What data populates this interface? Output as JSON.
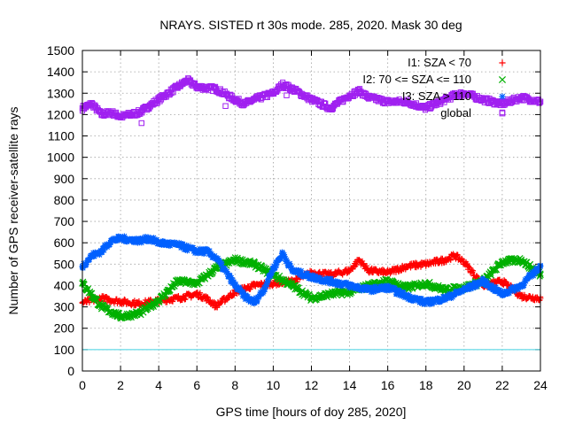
{
  "chart_data": {
    "type": "scatter",
    "title": "NRAYS. SISTED rt 30s mode. 285, 2020. Mask 30 deg",
    "xlabel": "GPS time [hours of doy 285, 2020]",
    "ylabel": "Number of GPS receiver-satellite rays",
    "xlim": [
      0,
      24
    ],
    "ylim": [
      0,
      1500
    ],
    "xticks": [
      "0",
      "2",
      "4",
      "6",
      "8",
      "10",
      "12",
      "14",
      "16",
      "18",
      "20",
      "22",
      "24"
    ],
    "yticks": [
      "0",
      "100",
      "200",
      "300",
      "400",
      "500",
      "600",
      "700",
      "800",
      "900",
      "1000",
      "1100",
      "1200",
      "1300",
      "1400",
      "1500"
    ],
    "grid": true,
    "legend_position": "top-right",
    "threshold_line": {
      "y": 100,
      "color": "#40d0e0"
    },
    "series": [
      {
        "name": "I1: SZA < 70",
        "marker": "+",
        "color": "#ff0000",
        "x": [
          0,
          1,
          2,
          3,
          4,
          5,
          6,
          6.5,
          7,
          8,
          9,
          10,
          11,
          12,
          13,
          14,
          14.5,
          15,
          16,
          17,
          18,
          19,
          19.5,
          20,
          21,
          22,
          23,
          24
        ],
        "y": [
          320,
          340,
          325,
          315,
          330,
          340,
          360,
          340,
          305,
          370,
          400,
          410,
          420,
          460,
          450,
          470,
          520,
          470,
          460,
          490,
          500,
          520,
          540,
          510,
          400,
          420,
          350,
          340
        ]
      },
      {
        "name": "I2: 70 <= SZA <= 110",
        "marker": "x",
        "color": "#00b000",
        "x": [
          0,
          1,
          2,
          3,
          4,
          5,
          6,
          7,
          8,
          9,
          10,
          11,
          12,
          13,
          14,
          15,
          16,
          17,
          18,
          19,
          20,
          21,
          22,
          23,
          24
        ],
        "y": [
          410,
          300,
          255,
          270,
          330,
          420,
          410,
          480,
          520,
          500,
          450,
          400,
          340,
          360,
          370,
          400,
          420,
          390,
          410,
          380,
          390,
          420,
          510,
          520,
          450
        ]
      },
      {
        "name": "I3: SZA > 110",
        "marker": "*",
        "color": "#0060ff",
        "x": [
          0,
          0.5,
          1,
          1.5,
          2,
          3,
          3.5,
          4,
          5,
          6,
          6.5,
          7,
          8,
          8.5,
          9,
          9.5,
          10,
          10.5,
          11,
          12,
          13,
          14,
          15,
          16,
          17,
          18,
          19,
          20,
          21,
          22,
          23,
          24
        ],
        "y": [
          490,
          540,
          560,
          610,
          620,
          610,
          620,
          600,
          590,
          560,
          560,
          530,
          400,
          350,
          320,
          380,
          480,
          550,
          470,
          440,
          420,
          400,
          380,
          390,
          350,
          320,
          340,
          380,
          420,
          360,
          400,
          490
        ]
      },
      {
        "name": "global",
        "marker": "square",
        "color": "#a020f0",
        "x": [
          0,
          0.5,
          1,
          1.5,
          2,
          3,
          3.5,
          4,
          5,
          5.5,
          6,
          7,
          8,
          8.5,
          9,
          10,
          10.5,
          11,
          12,
          13,
          14,
          14.5,
          15,
          16,
          17,
          18,
          19,
          19.5,
          20,
          21,
          22,
          23,
          24
        ],
        "y": [
          1230,
          1250,
          1200,
          1210,
          1190,
          1210,
          1240,
          1270,
          1330,
          1360,
          1330,
          1320,
          1270,
          1250,
          1270,
          1300,
          1340,
          1320,
          1270,
          1230,
          1290,
          1310,
          1280,
          1260,
          1260,
          1230,
          1270,
          1290,
          1300,
          1270,
          1250,
          1280,
          1260
        ]
      }
    ]
  }
}
